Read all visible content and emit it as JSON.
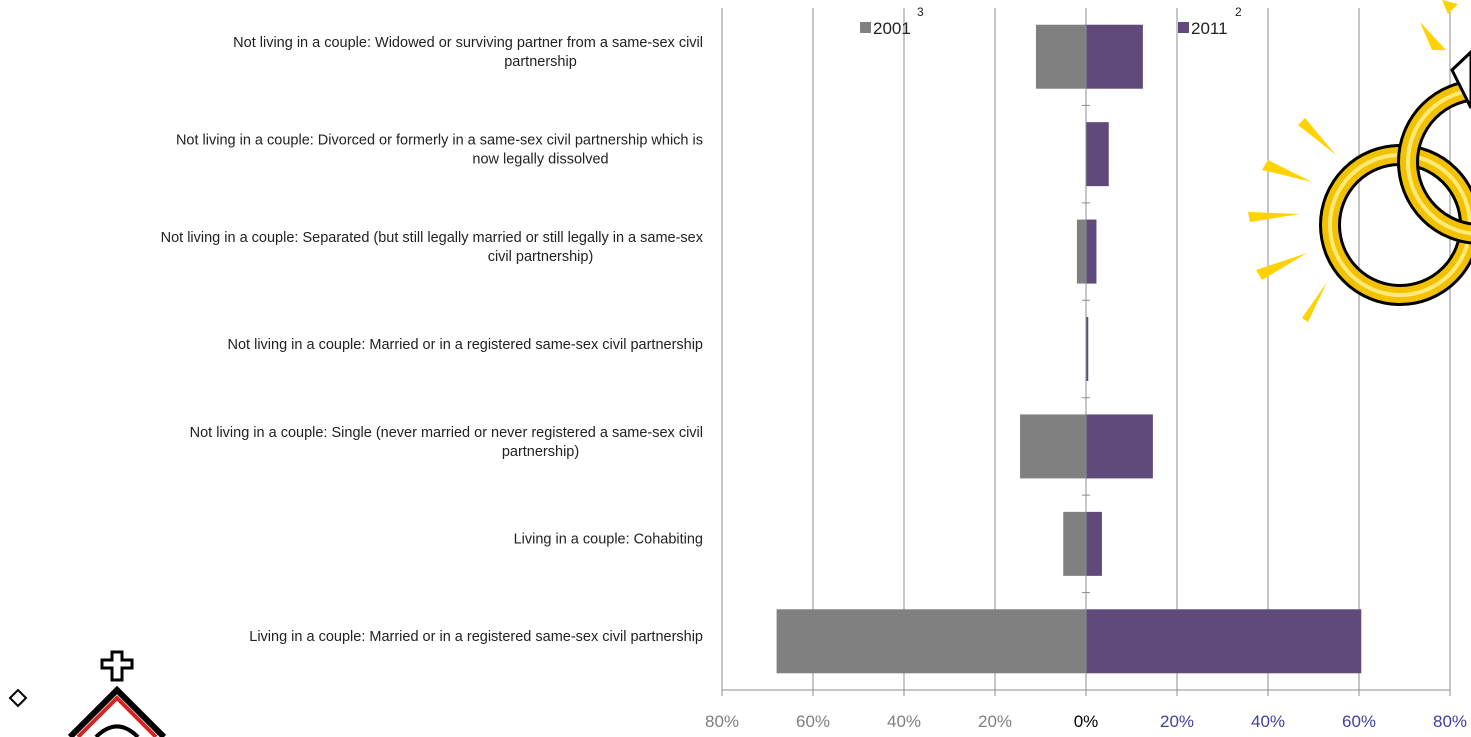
{
  "chart_data": {
    "type": "bar",
    "orientation": "horizontal-diverging",
    "categories": [
      "Not living in a couple: Widowed or surviving partner from a same-sex civil partnership",
      "Not living in a couple: Divorced or formerly in a same-sex civil partnership which is now legally dissolved",
      "Not living in a couple: Separated (but still legally married or still legally in a same-sex civil partnership)",
      "Not living in a couple: Married or in a registered same-sex civil partnership",
      "Not living in a couple: Single (never married or never registered a same-sex civil partnership)",
      "Living in a couple: Cohabiting",
      "Living in a couple: Married or in a registered same-sex civil partnership"
    ],
    "category_label_lines": [
      [
        "Not living in a couple: Widowed or surviving partner from a same-sex civil",
        "partnership"
      ],
      [
        "Not living in a couple: Divorced or formerly in a same-sex civil partnership which is",
        "now legally dissolved"
      ],
      [
        "Not living in a couple: Separated (but still legally married or still legally in a same-sex",
        "civil partnership)"
      ],
      [
        "Not living in a couple: Married or in a registered same-sex civil partnership"
      ],
      [
        "Not living in a couple: Single (never married or never registered a same-sex civil",
        "partnership)"
      ],
      [
        "Living in a couple: Cohabiting"
      ],
      [
        "Living in a couple: Married or in a registered same-sex civil partnership"
      ]
    ],
    "series": [
      {
        "name": "2001",
        "superscript": "3",
        "direction": "left",
        "color": "#808080",
        "values": [
          11,
          0,
          2,
          0,
          14.5,
          5,
          68
        ]
      },
      {
        "name": "2011",
        "superscript": "2",
        "direction": "right",
        "color": "#604a7b",
        "values": [
          12.5,
          5,
          2.3,
          0.5,
          14.7,
          3.5,
          60.5
        ]
      }
    ],
    "xlim": [
      -80,
      80
    ],
    "xticks": [
      {
        "label": "80%",
        "value": -80,
        "color": "#7f7f7f"
      },
      {
        "label": "60%",
        "value": -60,
        "color": "#7f7f7f"
      },
      {
        "label": "40%",
        "value": -40,
        "color": "#7f7f7f"
      },
      {
        "label": "20%",
        "value": -20,
        "color": "#7f7f7f"
      },
      {
        "label": "0%",
        "value": 0,
        "color": "#000000"
      },
      {
        "label": "20%",
        "value": 20,
        "color": "#3f3f9f"
      },
      {
        "label": "40%",
        "value": 40,
        "color": "#3f3f9f"
      },
      {
        "label": "60%",
        "value": 60,
        "color": "#3f3f9f"
      },
      {
        "label": "80%",
        "value": 80,
        "color": "#3f3f9f"
      }
    ],
    "grid": true,
    "legend_position": "top",
    "decorations": [
      "wedding-rings-icon",
      "chapel-icon",
      "diamond-icon"
    ]
  }
}
